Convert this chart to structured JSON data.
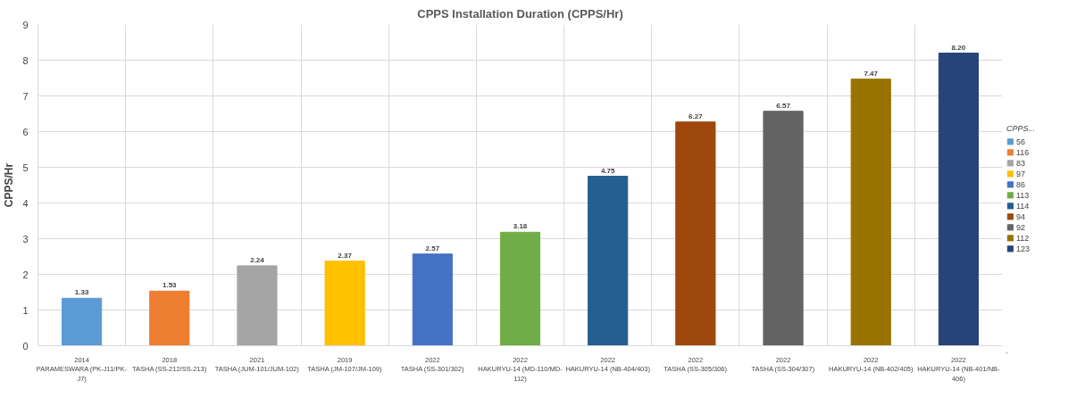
{
  "chart_data": {
    "type": "bar",
    "title": "CPPS Installation Duration (CPPS/Hr)",
    "ylabel": "CPPS/Hr",
    "legend_title": "CPPS...",
    "categories": [
      "2014\nPARAMESWARA (PK-J11/PK-\nJ7)",
      "2018\nTASHA (SS-212/SS-213)",
      "2021\nTASHA (JUM-101/JUM-102)",
      "2019\nTASHA (JM-107/JM-109)",
      "2022\nTASHA (SS-301/302)",
      "2022\nHAKURYU-14 (MD-110/MD-\n112)",
      "2022\nHAKURYU-14 (NB-404/403)",
      "2022\nTASHA (SS-305/306)",
      "2022\nTASHA (SS-304/307)",
      "2022\nHAKURYU-14 (NB-402/405)",
      "2022\nHAKURYU-14 (NB-401/NB-\n406)"
    ],
    "series": [
      {
        "name": "56",
        "color": "#5b9bd5",
        "values": [
          1.33,
          null,
          null,
          null,
          null,
          null,
          null,
          null,
          null,
          null,
          null
        ],
        "value_labels": [
          "1.33",
          null,
          null,
          null,
          null,
          null,
          null,
          null,
          null,
          null,
          null
        ]
      },
      {
        "name": "116",
        "color": "#ed7d31",
        "values": [
          null,
          1.53,
          null,
          null,
          null,
          null,
          null,
          null,
          null,
          null,
          null
        ],
        "value_labels": [
          null,
          "1.53",
          null,
          null,
          null,
          null,
          null,
          null,
          null,
          null,
          null
        ]
      },
      {
        "name": "83",
        "color": "#a5a5a5",
        "values": [
          null,
          null,
          2.24,
          null,
          null,
          null,
          null,
          null,
          null,
          null,
          null
        ],
        "value_labels": [
          null,
          null,
          "2.24",
          null,
          null,
          null,
          null,
          null,
          null,
          null,
          null
        ]
      },
      {
        "name": "97",
        "color": "#ffc000",
        "values": [
          null,
          null,
          null,
          2.37,
          null,
          null,
          null,
          null,
          null,
          null,
          null
        ],
        "value_labels": [
          null,
          null,
          null,
          "2.37",
          null,
          null,
          null,
          null,
          null,
          null,
          null
        ]
      },
      {
        "name": "86",
        "color": "#4472c4",
        "values": [
          null,
          null,
          null,
          null,
          2.57,
          null,
          null,
          null,
          null,
          null,
          null
        ],
        "value_labels": [
          null,
          null,
          null,
          null,
          "2.57",
          null,
          null,
          null,
          null,
          null,
          null
        ]
      },
      {
        "name": "113",
        "color": "#70ad47",
        "values": [
          null,
          null,
          null,
          null,
          null,
          3.18,
          null,
          null,
          null,
          null,
          null
        ],
        "value_labels": [
          null,
          null,
          null,
          null,
          null,
          "3.18",
          null,
          null,
          null,
          null,
          null
        ]
      },
      {
        "name": "114",
        "color": "#255e91",
        "values": [
          null,
          null,
          null,
          null,
          null,
          null,
          4.75,
          null,
          null,
          null,
          null
        ],
        "value_labels": [
          null,
          null,
          null,
          null,
          null,
          null,
          "4.75",
          null,
          null,
          null,
          null
        ]
      },
      {
        "name": "94",
        "color": "#9e480e",
        "values": [
          null,
          null,
          null,
          null,
          null,
          null,
          null,
          6.27,
          null,
          null,
          null
        ],
        "value_labels": [
          null,
          null,
          null,
          null,
          null,
          null,
          null,
          "6.27",
          null,
          null,
          null
        ]
      },
      {
        "name": "92",
        "color": "#636363",
        "values": [
          null,
          null,
          null,
          null,
          null,
          null,
          null,
          null,
          6.57,
          null,
          null
        ],
        "value_labels": [
          null,
          null,
          null,
          null,
          null,
          null,
          null,
          null,
          "6.57",
          null,
          null
        ]
      },
      {
        "name": "112",
        "color": "#997300",
        "values": [
          null,
          null,
          null,
          null,
          null,
          null,
          null,
          null,
          null,
          7.47,
          null
        ],
        "value_labels": [
          null,
          null,
          null,
          null,
          null,
          null,
          null,
          null,
          null,
          "7.47",
          null
        ]
      },
      {
        "name": "123",
        "color": "#264478",
        "values": [
          null,
          null,
          null,
          null,
          null,
          null,
          null,
          null,
          null,
          null,
          8.2
        ],
        "value_labels": [
          null,
          null,
          null,
          null,
          null,
          null,
          null,
          null,
          null,
          null,
          "8.20"
        ]
      }
    ],
    "ylim": [
      0,
      9
    ],
    "yticks": [
      0,
      1,
      2,
      3,
      4,
      5,
      6,
      7,
      8,
      9
    ],
    "grid": true,
    "legend": "right"
  }
}
